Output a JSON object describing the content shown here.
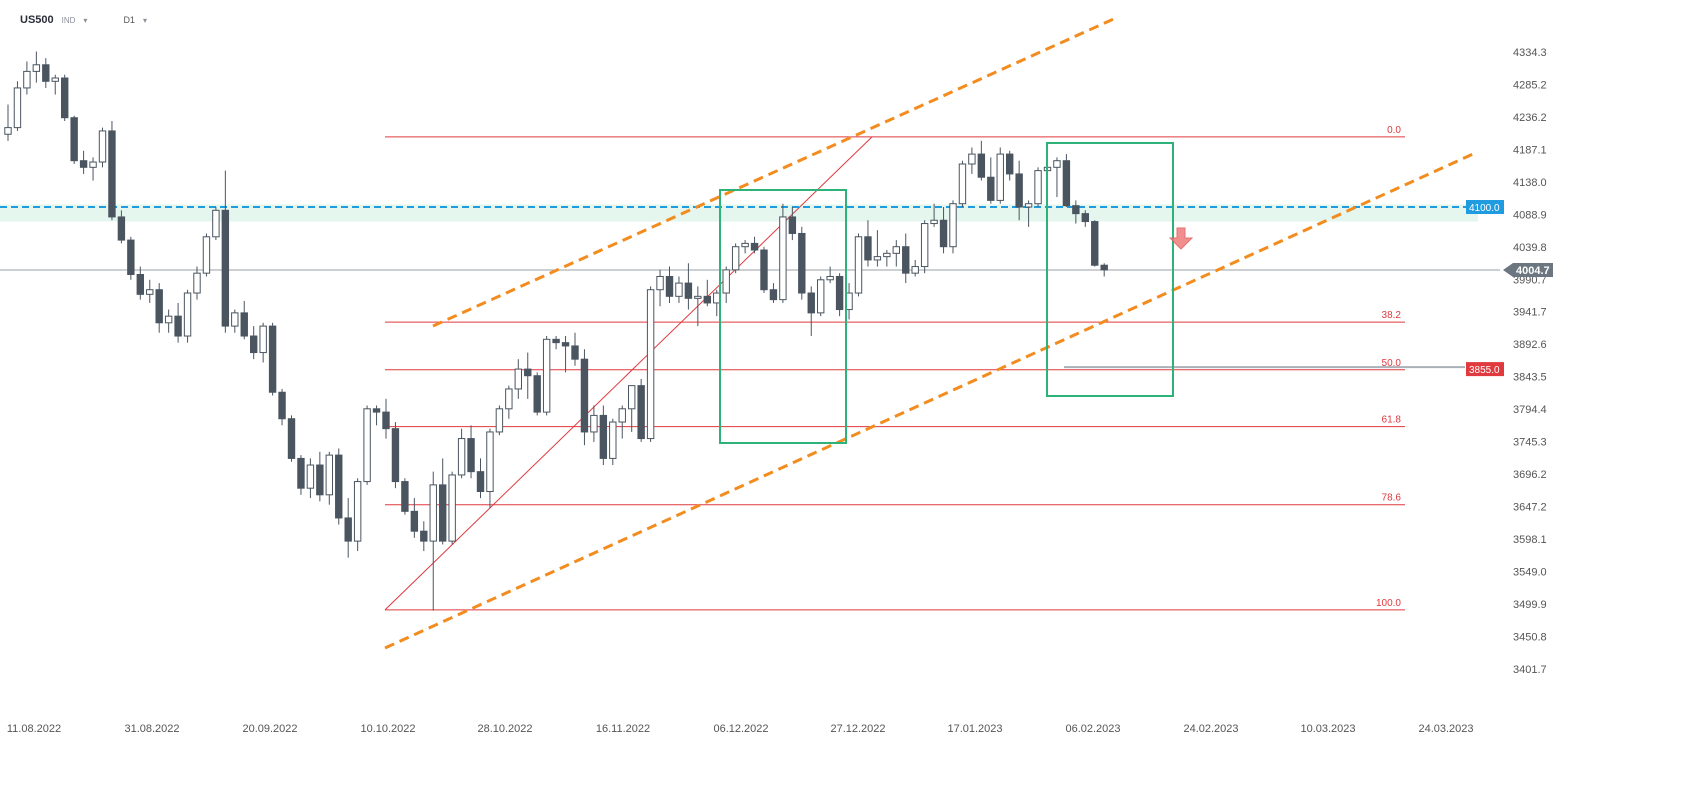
{
  "header": {
    "symbol": "US500",
    "instrument_type": "IND",
    "timeframe": "D1",
    "dropdown_icon": "chevron-down-icon"
  },
  "colors": {
    "bull_fill": "#ffffff",
    "bear_fill": "#4a5560",
    "candle_outline": "#4a5560",
    "fib": "#e0393e",
    "channel": "#f28c1e",
    "box": "#2db37a",
    "resistance": "#1f9be0",
    "zone": "#d9f2e7",
    "current_price": "#9aa0a6",
    "support_label": "#e0393e",
    "arrow": "#ef7b7b"
  },
  "chart_data": {
    "type": "candlestick",
    "symbol": "US500",
    "timeframe": "D1",
    "y_ticks": [
      4334.3,
      4285.2,
      4236.2,
      4187.1,
      4138.0,
      4088.9,
      4039.8,
      3990.7,
      3941.7,
      3892.6,
      3843.5,
      3794.4,
      3745.3,
      3696.2,
      3647.2,
      3598.1,
      3549.0,
      3499.9,
      3450.8,
      3401.7
    ],
    "x_ticks": [
      "11.08.2022",
      "31.08.2022",
      "20.09.2022",
      "10.10.2022",
      "28.10.2022",
      "16.11.2022",
      "06.12.2022",
      "27.12.2022",
      "17.01.2023",
      "06.02.2023",
      "24.02.2023",
      "10.03.2023",
      "24.03.2023"
    ],
    "fib_levels": [
      {
        "label": "0.0",
        "price": 4206
      },
      {
        "label": "38.2",
        "price": 3926
      },
      {
        "label": "50.0",
        "price": 3854
      },
      {
        "label": "61.8",
        "price": 3768
      },
      {
        "label": "78.6",
        "price": 3650
      },
      {
        "label": "100.0",
        "price": 3491
      }
    ],
    "price_labels": [
      {
        "name": "resistance",
        "text": "4100.0",
        "price": 4100
      },
      {
        "name": "current",
        "text": "4004.7",
        "price": 4004.7
      },
      {
        "name": "support",
        "text": "3855.0",
        "price": 3855
      }
    ],
    "candles": [
      {
        "o": 4210,
        "h": 4255,
        "l": 4200,
        "c": 4220
      },
      {
        "o": 4220,
        "h": 4290,
        "l": 4215,
        "c": 4280
      },
      {
        "o": 4280,
        "h": 4320,
        "l": 4270,
        "c": 4305
      },
      {
        "o": 4305,
        "h": 4335,
        "l": 4288,
        "c": 4315
      },
      {
        "o": 4315,
        "h": 4325,
        "l": 4280,
        "c": 4290
      },
      {
        "o": 4290,
        "h": 4300,
        "l": 4270,
        "c": 4295
      },
      {
        "o": 4295,
        "h": 4300,
        "l": 4230,
        "c": 4235
      },
      {
        "o": 4235,
        "h": 4238,
        "l": 4165,
        "c": 4170
      },
      {
        "o": 4170,
        "h": 4185,
        "l": 4150,
        "c": 4160
      },
      {
        "o": 4160,
        "h": 4175,
        "l": 4140,
        "c": 4168
      },
      {
        "o": 4168,
        "h": 4220,
        "l": 4160,
        "c": 4215
      },
      {
        "o": 4215,
        "h": 4230,
        "l": 4080,
        "c": 4085
      },
      {
        "o": 4085,
        "h": 4095,
        "l": 4045,
        "c": 4050
      },
      {
        "o": 4050,
        "h": 4055,
        "l": 3990,
        "c": 3998
      },
      {
        "o": 3998,
        "h": 4010,
        "l": 3960,
        "c": 3968
      },
      {
        "o": 3968,
        "h": 3990,
        "l": 3955,
        "c": 3975
      },
      {
        "o": 3975,
        "h": 3985,
        "l": 3910,
        "c": 3925
      },
      {
        "o": 3925,
        "h": 3945,
        "l": 3910,
        "c": 3935
      },
      {
        "o": 3935,
        "h": 3955,
        "l": 3895,
        "c": 3905
      },
      {
        "o": 3905,
        "h": 3975,
        "l": 3895,
        "c": 3970
      },
      {
        "o": 3970,
        "h": 4010,
        "l": 3960,
        "c": 4000
      },
      {
        "o": 4000,
        "h": 4060,
        "l": 3995,
        "c": 4055
      },
      {
        "o": 4055,
        "h": 4100,
        "l": 4050,
        "c": 4095
      },
      {
        "o": 4095,
        "h": 4155,
        "l": 3910,
        "c": 3920
      },
      {
        "o": 3920,
        "h": 3945,
        "l": 3910,
        "c": 3940
      },
      {
        "o": 3940,
        "h": 3958,
        "l": 3900,
        "c": 3905
      },
      {
        "o": 3905,
        "h": 3920,
        "l": 3870,
        "c": 3880
      },
      {
        "o": 3880,
        "h": 3925,
        "l": 3865,
        "c": 3920
      },
      {
        "o": 3920,
        "h": 3925,
        "l": 3815,
        "c": 3820
      },
      {
        "o": 3820,
        "h": 3825,
        "l": 3770,
        "c": 3780
      },
      {
        "o": 3780,
        "h": 3785,
        "l": 3715,
        "c": 3720
      },
      {
        "o": 3720,
        "h": 3725,
        "l": 3665,
        "c": 3675
      },
      {
        "o": 3675,
        "h": 3720,
        "l": 3660,
        "c": 3710
      },
      {
        "o": 3710,
        "h": 3730,
        "l": 3655,
        "c": 3665
      },
      {
        "o": 3665,
        "h": 3730,
        "l": 3650,
        "c": 3725
      },
      {
        "o": 3725,
        "h": 3735,
        "l": 3620,
        "c": 3630
      },
      {
        "o": 3630,
        "h": 3660,
        "l": 3570,
        "c": 3595
      },
      {
        "o": 3595,
        "h": 3690,
        "l": 3580,
        "c": 3685
      },
      {
        "o": 3685,
        "h": 3800,
        "l": 3680,
        "c": 3795
      },
      {
        "o": 3795,
        "h": 3800,
        "l": 3770,
        "c": 3790
      },
      {
        "o": 3790,
        "h": 3810,
        "l": 3750,
        "c": 3765
      },
      {
        "o": 3765,
        "h": 3775,
        "l": 3675,
        "c": 3685
      },
      {
        "o": 3685,
        "h": 3690,
        "l": 3635,
        "c": 3640
      },
      {
        "o": 3640,
        "h": 3660,
        "l": 3600,
        "c": 3610
      },
      {
        "o": 3610,
        "h": 3625,
        "l": 3580,
        "c": 3595
      },
      {
        "o": 3595,
        "h": 3700,
        "l": 3490,
        "c": 3680
      },
      {
        "o": 3680,
        "h": 3720,
        "l": 3590,
        "c": 3595
      },
      {
        "o": 3595,
        "h": 3700,
        "l": 3590,
        "c": 3695
      },
      {
        "o": 3695,
        "h": 3765,
        "l": 3690,
        "c": 3750
      },
      {
        "o": 3750,
        "h": 3770,
        "l": 3690,
        "c": 3700
      },
      {
        "o": 3700,
        "h": 3720,
        "l": 3660,
        "c": 3670
      },
      {
        "o": 3670,
        "h": 3765,
        "l": 3645,
        "c": 3760
      },
      {
        "o": 3760,
        "h": 3800,
        "l": 3755,
        "c": 3795
      },
      {
        "o": 3795,
        "h": 3830,
        "l": 3780,
        "c": 3825
      },
      {
        "o": 3825,
        "h": 3870,
        "l": 3810,
        "c": 3855
      },
      {
        "o": 3855,
        "h": 3880,
        "l": 3810,
        "c": 3845
      },
      {
        "o": 3845,
        "h": 3850,
        "l": 3785,
        "c": 3790
      },
      {
        "o": 3790,
        "h": 3905,
        "l": 3785,
        "c": 3900
      },
      {
        "o": 3900,
        "h": 3905,
        "l": 3885,
        "c": 3895
      },
      {
        "o": 3895,
        "h": 3905,
        "l": 3850,
        "c": 3890
      },
      {
        "o": 3890,
        "h": 3910,
        "l": 3860,
        "c": 3870
      },
      {
        "o": 3870,
        "h": 3885,
        "l": 3740,
        "c": 3760
      },
      {
        "o": 3760,
        "h": 3800,
        "l": 3745,
        "c": 3785
      },
      {
        "o": 3785,
        "h": 3800,
        "l": 3710,
        "c": 3720
      },
      {
        "o": 3720,
        "h": 3780,
        "l": 3710,
        "c": 3775
      },
      {
        "o": 3775,
        "h": 3800,
        "l": 3750,
        "c": 3795
      },
      {
        "o": 3795,
        "h": 3830,
        "l": 3760,
        "c": 3830
      },
      {
        "o": 3830,
        "h": 3840,
        "l": 3745,
        "c": 3750
      },
      {
        "o": 3750,
        "h": 3980,
        "l": 3745,
        "c": 3975
      },
      {
        "o": 3975,
        "h": 4005,
        "l": 3950,
        "c": 3995
      },
      {
        "o": 3995,
        "h": 4010,
        "l": 3955,
        "c": 3965
      },
      {
        "o": 3965,
        "h": 3995,
        "l": 3955,
        "c": 3985
      },
      {
        "o": 3985,
        "h": 4015,
        "l": 3945,
        "c": 3962
      },
      {
        "o": 3962,
        "h": 3980,
        "l": 3920,
        "c": 3965
      },
      {
        "o": 3965,
        "h": 3990,
        "l": 3950,
        "c": 3955
      },
      {
        "o": 3955,
        "h": 3975,
        "l": 3935,
        "c": 3970
      },
      {
        "o": 3970,
        "h": 4010,
        "l": 3955,
        "c": 4005
      },
      {
        "o": 4005,
        "h": 4045,
        "l": 4000,
        "c": 4040
      },
      {
        "o": 4040,
        "h": 4050,
        "l": 4030,
        "c": 4045
      },
      {
        "o": 4045,
        "h": 4055,
        "l": 4030,
        "c": 4035
      },
      {
        "o": 4035,
        "h": 4040,
        "l": 3970,
        "c": 3975
      },
      {
        "o": 3975,
        "h": 3985,
        "l": 3955,
        "c": 3960
      },
      {
        "o": 3960,
        "h": 4105,
        "l": 3955,
        "c": 4085
      },
      {
        "o": 4085,
        "h": 4100,
        "l": 4050,
        "c": 4060
      },
      {
        "o": 4060,
        "h": 4070,
        "l": 3960,
        "c": 3970
      },
      {
        "o": 3970,
        "h": 3980,
        "l": 3905,
        "c": 3940
      },
      {
        "o": 3940,
        "h": 3995,
        "l": 3935,
        "c": 3990
      },
      {
        "o": 3990,
        "h": 4010,
        "l": 3985,
        "c": 3995
      },
      {
        "o": 3995,
        "h": 4000,
        "l": 3935,
        "c": 3945
      },
      {
        "o": 3945,
        "h": 3985,
        "l": 3930,
        "c": 3970
      },
      {
        "o": 3970,
        "h": 4060,
        "l": 3965,
        "c": 4055
      },
      {
        "o": 4055,
        "h": 4080,
        "l": 4010,
        "c": 4020
      },
      {
        "o": 4020,
        "h": 4065,
        "l": 4010,
        "c": 4025
      },
      {
        "o": 4025,
        "h": 4035,
        "l": 4010,
        "c": 4030
      },
      {
        "o": 4030,
        "h": 4050,
        "l": 4010,
        "c": 4040
      },
      {
        "o": 4040,
        "h": 4060,
        "l": 3985,
        "c": 4000
      },
      {
        "o": 4000,
        "h": 4020,
        "l": 3995,
        "c": 4010
      },
      {
        "o": 4010,
        "h": 4080,
        "l": 4000,
        "c": 4075
      },
      {
        "o": 4075,
        "h": 4105,
        "l": 4070,
        "c": 4080
      },
      {
        "o": 4080,
        "h": 4100,
        "l": 4030,
        "c": 4040
      },
      {
        "o": 4040,
        "h": 4110,
        "l": 4030,
        "c": 4105
      },
      {
        "o": 4105,
        "h": 4170,
        "l": 4100,
        "c": 4165
      },
      {
        "o": 4165,
        "h": 4190,
        "l": 4150,
        "c": 4180
      },
      {
        "o": 4180,
        "h": 4200,
        "l": 4140,
        "c": 4145
      },
      {
        "o": 4145,
        "h": 4175,
        "l": 4105,
        "c": 4110
      },
      {
        "o": 4110,
        "h": 4190,
        "l": 4105,
        "c": 4180
      },
      {
        "o": 4180,
        "h": 4185,
        "l": 4140,
        "c": 4150
      },
      {
        "o": 4150,
        "h": 4170,
        "l": 4080,
        "c": 4100
      },
      {
        "o": 4100,
        "h": 4110,
        "l": 4070,
        "c": 4105
      },
      {
        "o": 4105,
        "h": 4160,
        "l": 4100,
        "c": 4155
      },
      {
        "o": 4155,
        "h": 4195,
        "l": 4150,
        "c": 4160
      },
      {
        "o": 4160,
        "h": 4175,
        "l": 4115,
        "c": 4170
      },
      {
        "o": 4170,
        "h": 4180,
        "l": 4100,
        "c": 4102
      },
      {
        "o": 4102,
        "h": 4110,
        "l": 4075,
        "c": 4090
      },
      {
        "o": 4090,
        "h": 4095,
        "l": 4070,
        "c": 4078
      },
      {
        "o": 4078,
        "h": 4080,
        "l": 4010,
        "c": 4012
      },
      {
        "o": 4012,
        "h": 4015,
        "l": 3995,
        "c": 4005
      }
    ]
  }
}
